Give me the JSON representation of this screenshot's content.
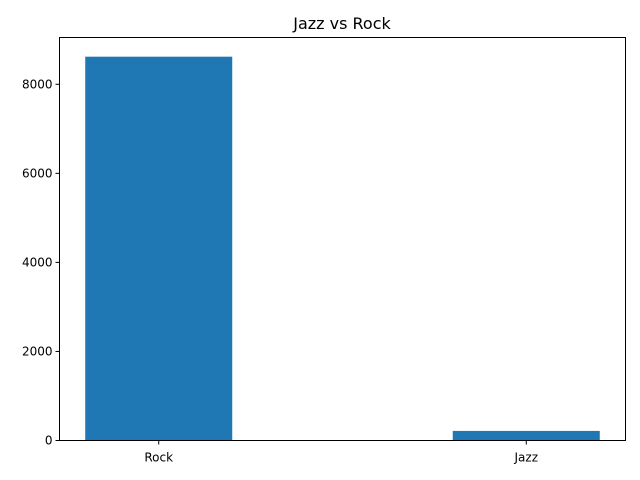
{
  "chart_data": {
    "type": "bar",
    "title": "Jazz vs Rock",
    "xlabel": "",
    "ylabel": "",
    "categories": [
      "Rock",
      "Jazz"
    ],
    "values": [
      8620,
      215
    ],
    "ylim": [
      0,
      9051
    ],
    "yticks": [
      0,
      2000,
      4000,
      6000,
      8000
    ],
    "bar_color": "#1f77b4",
    "grid": false,
    "legend": "none"
  }
}
